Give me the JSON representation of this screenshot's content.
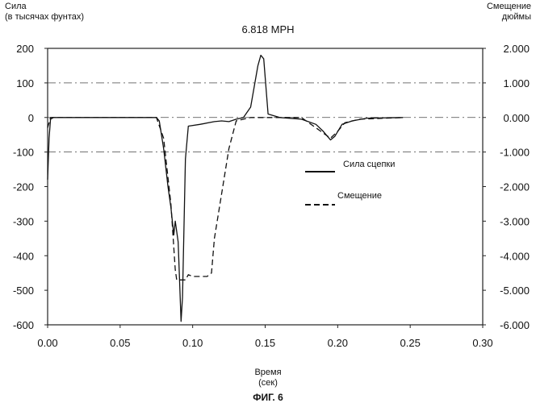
{
  "chart_data": {
    "type": "line",
    "title": "6.818 MPH",
    "ylabel": [
      "Сила",
      "(в тысячах фунтах)"
    ],
    "y2label": [
      "Смещение",
      "дюймы"
    ],
    "xlabel": [
      "Время",
      "(сек)"
    ],
    "caption": "ФИГ. 6",
    "xlim": [
      0.0,
      0.3
    ],
    "ylim": [
      -600,
      200
    ],
    "y2lim": [
      -6.0,
      2.0
    ],
    "x_ticks": [
      "0.00",
      "0.05",
      "0.10",
      "0.15",
      "0.20",
      "0.25",
      "0.30"
    ],
    "y_ticks": [
      "200",
      "100",
      "0",
      "-100",
      "-200",
      "-300",
      "-400",
      "-500",
      "-600"
    ],
    "y2_ticks": [
      "2.000",
      "1.000",
      "0.000",
      "-1.000",
      "-2.000",
      "-3.000",
      "-4.000",
      "-5.000",
      "-6.000"
    ],
    "grid": "dash-dot at y = 100, 0, -100",
    "legend": "right",
    "series": [
      {
        "name": "Сила сцепки",
        "style": "solid",
        "axis": "left",
        "points": [
          [
            0.0,
            -180
          ],
          [
            0.001,
            -60
          ],
          [
            0.002,
            -5
          ],
          [
            0.004,
            0
          ],
          [
            0.05,
            0
          ],
          [
            0.075,
            0
          ],
          [
            0.077,
            -10
          ],
          [
            0.08,
            -90
          ],
          [
            0.083,
            -200
          ],
          [
            0.085,
            -260
          ],
          [
            0.087,
            -340
          ],
          [
            0.088,
            -300
          ],
          [
            0.09,
            -360
          ],
          [
            0.092,
            -590
          ],
          [
            0.093,
            -520
          ],
          [
            0.095,
            -120
          ],
          [
            0.097,
            -25
          ],
          [
            0.105,
            -20
          ],
          [
            0.115,
            -12
          ],
          [
            0.12,
            -10
          ],
          [
            0.125,
            -12
          ],
          [
            0.13,
            -5
          ],
          [
            0.135,
            0
          ],
          [
            0.14,
            30
          ],
          [
            0.145,
            150
          ],
          [
            0.147,
            180
          ],
          [
            0.149,
            170
          ],
          [
            0.152,
            10
          ],
          [
            0.16,
            0
          ],
          [
            0.175,
            -5
          ],
          [
            0.185,
            -20
          ],
          [
            0.19,
            -40
          ],
          [
            0.195,
            -65
          ],
          [
            0.198,
            -55
          ],
          [
            0.203,
            -20
          ],
          [
            0.21,
            -10
          ],
          [
            0.22,
            -2
          ],
          [
            0.245,
            0
          ]
        ]
      },
      {
        "name": "Смещение",
        "style": "dashed",
        "axis": "right",
        "points": [
          [
            0.0,
            -0.3
          ],
          [
            0.002,
            0.0
          ],
          [
            0.05,
            0.0
          ],
          [
            0.075,
            0.0
          ],
          [
            0.08,
            -0.6
          ],
          [
            0.085,
            -2.5
          ],
          [
            0.088,
            -4.4
          ],
          [
            0.089,
            -4.7
          ],
          [
            0.095,
            -4.7
          ],
          [
            0.097,
            -4.55
          ],
          [
            0.1,
            -4.6
          ],
          [
            0.11,
            -4.6
          ],
          [
            0.113,
            -4.5
          ],
          [
            0.115,
            -3.5
          ],
          [
            0.12,
            -2.2
          ],
          [
            0.125,
            -0.9
          ],
          [
            0.13,
            -0.1
          ],
          [
            0.14,
            0.0
          ],
          [
            0.175,
            0.0
          ],
          [
            0.185,
            -0.3
          ],
          [
            0.195,
            -0.6
          ],
          [
            0.2,
            -0.4
          ],
          [
            0.205,
            -0.15
          ],
          [
            0.215,
            -0.05
          ],
          [
            0.245,
            0.0
          ]
        ]
      }
    ]
  }
}
